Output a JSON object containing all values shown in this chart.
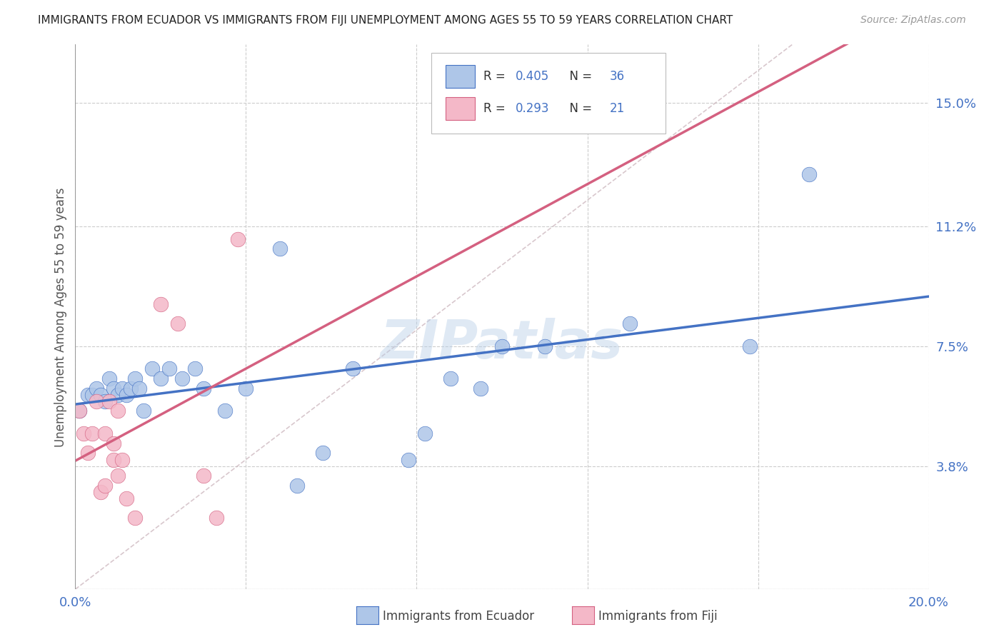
{
  "title": "IMMIGRANTS FROM ECUADOR VS IMMIGRANTS FROM FIJI UNEMPLOYMENT AMONG AGES 55 TO 59 YEARS CORRELATION CHART",
  "source": "Source: ZipAtlas.com",
  "ylabel": "Unemployment Among Ages 55 to 59 years",
  "xlim": [
    0.0,
    0.2
  ],
  "ylim": [
    0.0,
    0.168
  ],
  "xticks": [
    0.0,
    0.04,
    0.08,
    0.12,
    0.16,
    0.2
  ],
  "xticklabels": [
    "0.0%",
    "",
    "",
    "",
    "",
    "20.0%"
  ],
  "yticks_right": [
    0.0,
    0.038,
    0.075,
    0.112,
    0.15
  ],
  "ytick_labels_right": [
    "",
    "3.8%",
    "7.5%",
    "11.2%",
    "15.0%"
  ],
  "ecuador_R": 0.405,
  "ecuador_N": 36,
  "fiji_R": 0.293,
  "fiji_N": 21,
  "ecuador_color": "#aec6e8",
  "ecuador_line_color": "#4472c4",
  "fiji_color": "#f4b8c8",
  "fiji_line_color": "#d46080",
  "diag_color": "#c8b0b8",
  "background_color": "#ffffff",
  "grid_color": "#cccccc",
  "ecuador_x": [
    0.001,
    0.003,
    0.004,
    0.005,
    0.006,
    0.007,
    0.008,
    0.009,
    0.01,
    0.011,
    0.012,
    0.013,
    0.014,
    0.015,
    0.016,
    0.018,
    0.02,
    0.022,
    0.025,
    0.028,
    0.03,
    0.035,
    0.04,
    0.048,
    0.052,
    0.058,
    0.065,
    0.078,
    0.082,
    0.088,
    0.095,
    0.1,
    0.11,
    0.13,
    0.158,
    0.172
  ],
  "ecuador_y": [
    0.055,
    0.06,
    0.06,
    0.062,
    0.06,
    0.058,
    0.065,
    0.062,
    0.06,
    0.062,
    0.06,
    0.062,
    0.065,
    0.062,
    0.055,
    0.068,
    0.065,
    0.068,
    0.065,
    0.068,
    0.062,
    0.055,
    0.062,
    0.105,
    0.032,
    0.042,
    0.068,
    0.04,
    0.048,
    0.065,
    0.062,
    0.075,
    0.075,
    0.082,
    0.075,
    0.128
  ],
  "fiji_x": [
    0.001,
    0.002,
    0.003,
    0.004,
    0.005,
    0.006,
    0.007,
    0.007,
    0.008,
    0.009,
    0.009,
    0.01,
    0.01,
    0.011,
    0.012,
    0.014,
    0.02,
    0.024,
    0.03,
    0.033,
    0.038
  ],
  "fiji_y": [
    0.055,
    0.048,
    0.042,
    0.048,
    0.058,
    0.03,
    0.048,
    0.032,
    0.058,
    0.045,
    0.04,
    0.055,
    0.035,
    0.04,
    0.028,
    0.022,
    0.088,
    0.082,
    0.035,
    0.022,
    0.108
  ],
  "watermark": "ZIPatlas"
}
